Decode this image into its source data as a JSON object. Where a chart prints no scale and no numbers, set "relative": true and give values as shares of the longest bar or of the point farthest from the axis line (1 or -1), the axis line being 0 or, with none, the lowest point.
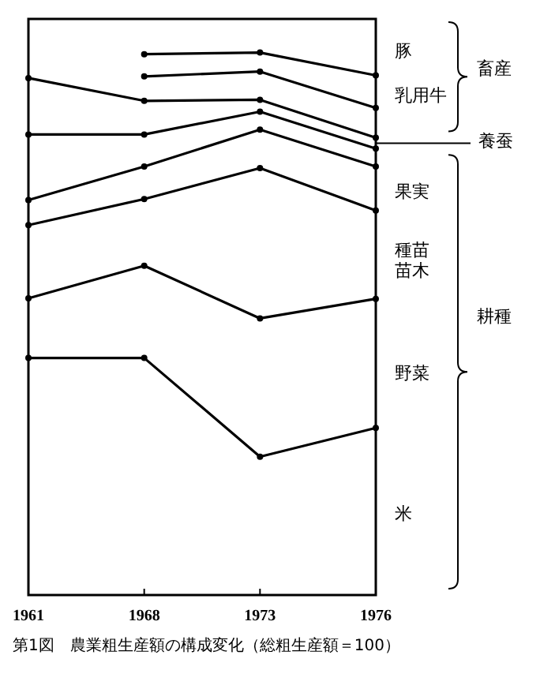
{
  "chart_data": {
    "type": "line",
    "relative": true,
    "marker": "circle",
    "line_style": "solid",
    "title": "第1図　農業粗生産額の構成変化（総粗生産額＝100）",
    "categories": [
      "1961",
      "1968",
      "1973",
      "1976"
    ],
    "series": [
      {
        "color": "#000000",
        "values": [
          0.437,
          0.437,
          0.255,
          0.308
        ]
      },
      {
        "color": "#000000",
        "values": [
          0.547,
          0.607,
          0.51,
          0.546
        ]
      },
      {
        "color": "#000000",
        "values": [
          0.682,
          0.73,
          0.787,
          0.709
        ]
      },
      {
        "color": "#000000",
        "values": [
          0.728,
          0.79,
          0.858,
          0.79
        ]
      },
      {
        "color": "#000000",
        "values": [
          0.849,
          0.849,
          0.891,
          0.823
        ]
      },
      {
        "color": "#000000",
        "values": [
          0.953,
          0.911,
          0.913,
          0.843
        ]
      },
      {
        "color": "#000000",
        "values": [
          null,
          0.956,
          0.965,
          0.898
        ]
      },
      {
        "color": "#000000",
        "values": [
          null,
          0.997,
          1.0,
          0.958
        ]
      }
    ],
    "annotations": [
      "豚",
      "乳用牛",
      "養蚕",
      "果実",
      "種苗",
      "苗木",
      "野菜",
      "米",
      "畜産",
      "耕種"
    ]
  }
}
